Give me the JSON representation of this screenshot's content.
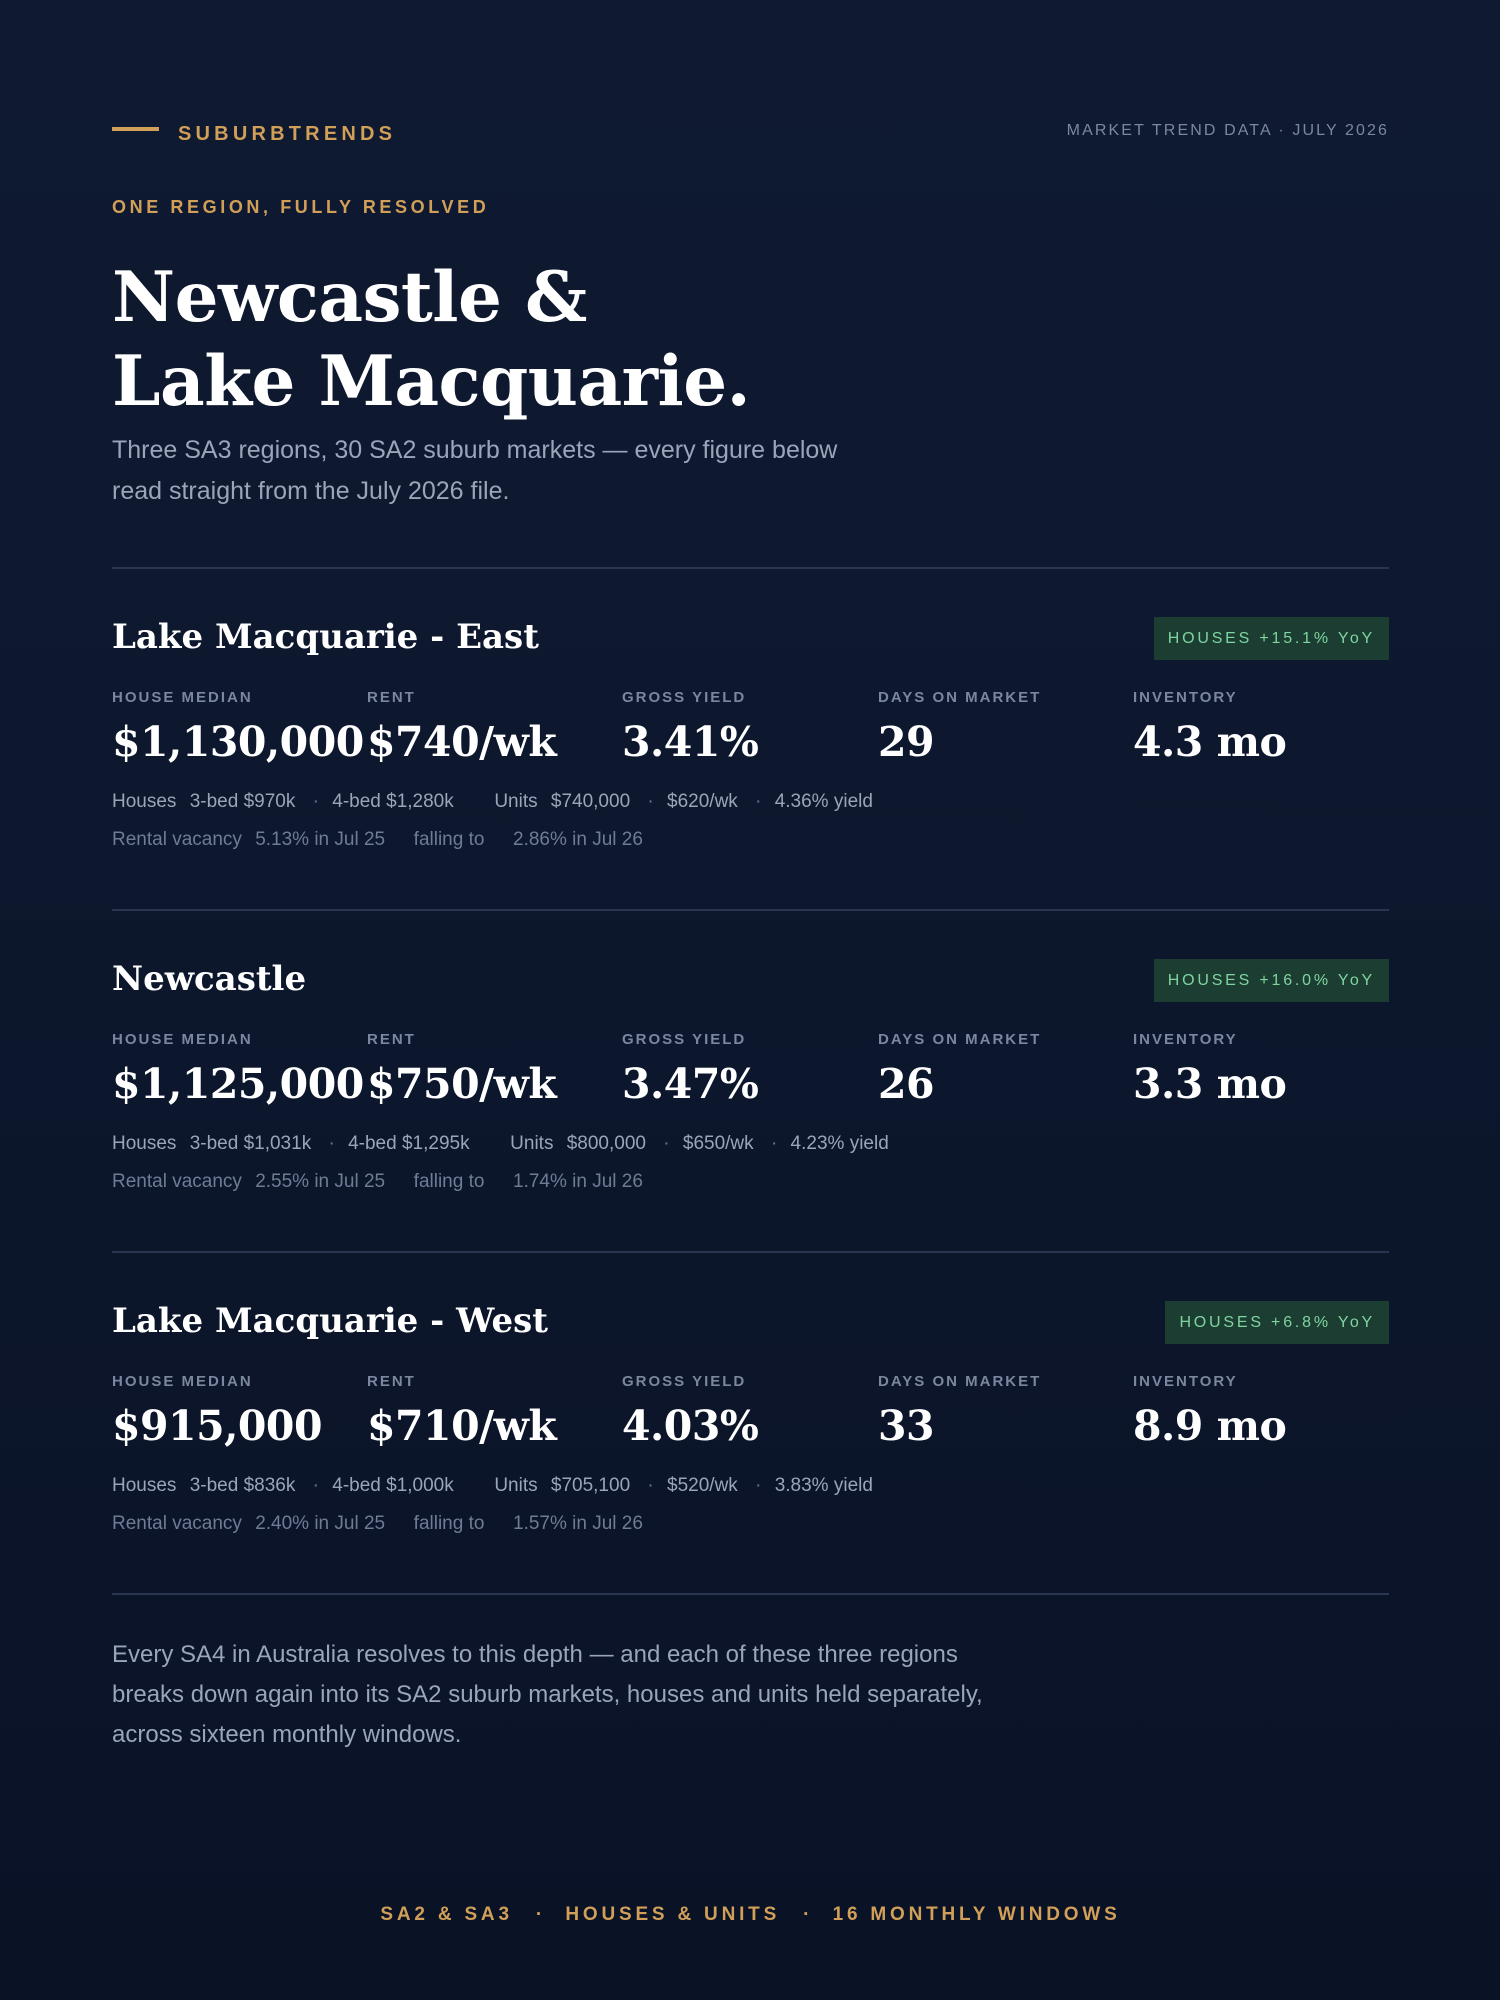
{
  "header": {
    "brand": "SUBURBTRENDS",
    "market_label": "MARKET TREND DATA · JULY 2026",
    "eyebrow": "ONE REGION, FULLY RESOLVED",
    "headline_line1": "Newcastle &",
    "headline_line2": "Lake Macquarie.",
    "intro": "Three SA3 regions, 30 SA2 suburb markets — every figure below read straight from the July 2026 file."
  },
  "stat_labels": {
    "house_median": "HOUSE MEDIAN",
    "rent": "RENT",
    "gross_yield": "GROSS YIELD",
    "days_on_market": "DAYS ON MARKET",
    "inventory": "INVENTORY"
  },
  "detail_labels": {
    "houses": "Houses",
    "units": "Units",
    "rental_vacancy": "Rental vacancy",
    "falling_to": "falling to"
  },
  "regions": [
    {
      "name": "Lake Macquarie - East",
      "badge": "HOUSES +15.1% YoY",
      "house_median": "$1,130,000",
      "rent": "$740/wk",
      "gross_yield": "3.41%",
      "days_on_market": "29",
      "inventory": "4.3 mo",
      "houses_3bed": "3-bed $970k",
      "houses_4bed": "4-bed $1,280k",
      "units_median": "$740,000",
      "units_rent": "$620/wk",
      "units_yield": "4.36% yield",
      "vacancy_from": "5.13% in Jul 25",
      "vacancy_to": "2.86% in Jul 26"
    },
    {
      "name": "Newcastle",
      "badge": "HOUSES +16.0% YoY",
      "house_median": "$1,125,000",
      "rent": "$750/wk",
      "gross_yield": "3.47%",
      "days_on_market": "26",
      "inventory": "3.3 mo",
      "houses_3bed": "3-bed $1,031k",
      "houses_4bed": "4-bed $1,295k",
      "units_median": "$800,000",
      "units_rent": "$650/wk",
      "units_yield": "4.23% yield",
      "vacancy_from": "2.55% in Jul 25",
      "vacancy_to": "1.74% in Jul 26"
    },
    {
      "name": "Lake Macquarie - West",
      "badge": "HOUSES +6.8% YoY",
      "house_median": "$915,000",
      "rent": "$710/wk",
      "gross_yield": "4.03%",
      "days_on_market": "33",
      "inventory": "8.9 mo",
      "houses_3bed": "3-bed $836k",
      "houses_4bed": "4-bed $1,000k",
      "units_median": "$705,100",
      "units_rent": "$520/wk",
      "units_yield": "3.83% yield",
      "vacancy_from": "2.40% in Jul 25",
      "vacancy_to": "1.57% in Jul 26"
    }
  ],
  "closing": "Every SA4 in Australia resolves to this depth — and each of these three regions breaks down again into its SA2 suburb markets, houses and units held separately, across sixteen monthly windows.",
  "footer": {
    "item1": "SA2 & SA3",
    "item2": "HOUSES & UNITS",
    "item3": "16 MONTHLY WINDOWS",
    "separator": "·"
  },
  "colors": {
    "background": "#0f1a32",
    "accent": "#d19f57",
    "badge_bg": "#1c3e32",
    "badge_text": "#7fd4a0",
    "muted_text": "#9aa5ba"
  }
}
